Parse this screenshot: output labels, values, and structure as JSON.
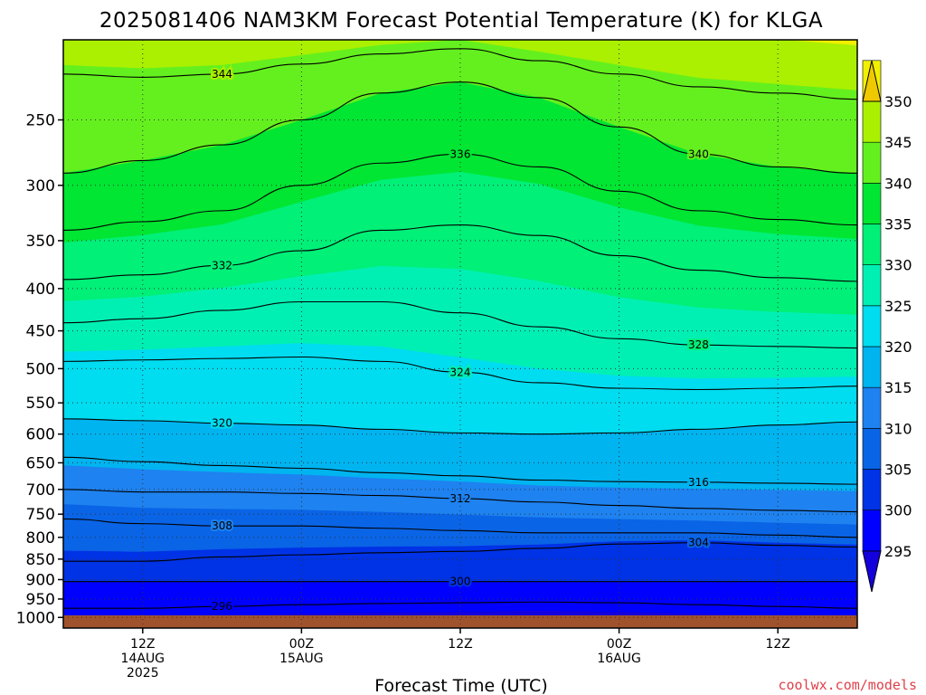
{
  "chart_data": {
    "type": "heatmap",
    "title": "2025081406 NAM3KM Forecast Potential Temperature (K) for KLGA",
    "xlabel": "Forecast Time (UTC)",
    "ylabel": "",
    "x_unit": "hours since 2025-08-14 06Z",
    "x_range_hours": [
      0,
      60
    ],
    "x_ticks": [
      {
        "hour": 6,
        "lines": [
          "12Z",
          "14AUG",
          "2025"
        ]
      },
      {
        "hour": 18,
        "lines": [
          "00Z",
          "15AUG"
        ]
      },
      {
        "hour": 30,
        "lines": [
          "12Z"
        ]
      },
      {
        "hour": 42,
        "lines": [
          "00Z",
          "16AUG"
        ]
      },
      {
        "hour": 54,
        "lines": [
          "12Z"
        ]
      }
    ],
    "y_scale": "log-pressure",
    "y_range_hpa": [
      1030,
      200
    ],
    "y_ticks_hpa": [
      250,
      300,
      350,
      400,
      450,
      500,
      550,
      600,
      650,
      700,
      750,
      800,
      850,
      900,
      950,
      1000
    ],
    "y_tick_labels": [
      "250",
      "300",
      "350",
      "400",
      "450",
      "500",
      "550",
      "600",
      "650",
      "700",
      "750",
      "800",
      "850",
      "900",
      "950",
      "1000"
    ],
    "colorbar": {
      "levels": [
        290,
        295,
        300,
        305,
        310,
        315,
        320,
        325,
        330,
        335,
        340,
        345,
        350,
        355
      ],
      "labels": [
        "295",
        "300",
        "305",
        "310",
        "315",
        "320",
        "325",
        "330",
        "335",
        "340",
        "345",
        "350"
      ],
      "colors": [
        "#1400dc",
        "#0000ff",
        "#0032e6",
        "#0a64e6",
        "#1e82f0",
        "#00b4f0",
        "#00dcf0",
        "#00f0b4",
        "#00f078",
        "#00e632",
        "#64f01e",
        "#aaf000",
        "#f0f000",
        "#f0c800"
      ]
    },
    "contour_lines": [
      {
        "value": 296,
        "label": "296",
        "pressure_hpa": [
          975,
          975,
          970,
          965,
          962,
          960,
          958,
          960,
          965,
          970,
          975
        ]
      },
      {
        "value": 300,
        "label": "300",
        "pressure_hpa": [
          905,
          905,
          905,
          905,
          905,
          905,
          905,
          905,
          905,
          905,
          905
        ]
      },
      {
        "value": 304,
        "label": "304",
        "pressure_hpa": [
          855,
          855,
          845,
          840,
          835,
          832,
          825,
          815,
          812,
          818,
          822
        ]
      },
      {
        "value": 308,
        "label": "308",
        "pressure_hpa": [
          760,
          770,
          775,
          775,
          780,
          785,
          790,
          790,
          790,
          795,
          800
        ]
      },
      {
        "value": 312,
        "label": "312",
        "pressure_hpa": [
          700,
          705,
          705,
          708,
          712,
          718,
          725,
          732,
          738,
          742,
          745
        ]
      },
      {
        "value": 316,
        "label": "316",
        "pressure_hpa": [
          640,
          648,
          655,
          660,
          668,
          674,
          682,
          685,
          686,
          688,
          690
        ]
      },
      {
        "value": 320,
        "label": "320",
        "pressure_hpa": [
          575,
          578,
          582,
          585,
          592,
          598,
          600,
          598,
          592,
          585,
          580
        ]
      },
      {
        "value": 324,
        "label": "324",
        "pressure_hpa": [
          490,
          488,
          486,
          484,
          490,
          505,
          520,
          528,
          530,
          528,
          525
        ]
      },
      {
        "value": 328,
        "label": "328",
        "pressure_hpa": [
          440,
          435,
          425,
          415,
          415,
          428,
          445,
          460,
          468,
          470,
          472
        ]
      },
      {
        "value": 332,
        "label": "332",
        "pressure_hpa": [
          390,
          385,
          375,
          360,
          340,
          335,
          345,
          365,
          380,
          388,
          392
        ]
      },
      {
        "value": 336,
        "label": "336",
        "pressure_hpa": [
          340,
          332,
          322,
          300,
          282,
          275,
          285,
          305,
          322,
          330,
          335
        ]
      },
      {
        "value": 340,
        "label": "340",
        "pressure_hpa": [
          290,
          280,
          268,
          250,
          232,
          225,
          235,
          255,
          275,
          285,
          290
        ]
      },
      {
        "value": 344,
        "label": "344",
        "pressure_hpa": [
          220,
          222,
          220,
          214,
          208,
          205,
          212,
          220,
          228,
          232,
          236
        ]
      }
    ]
  },
  "credit": "coolwx.com/models"
}
